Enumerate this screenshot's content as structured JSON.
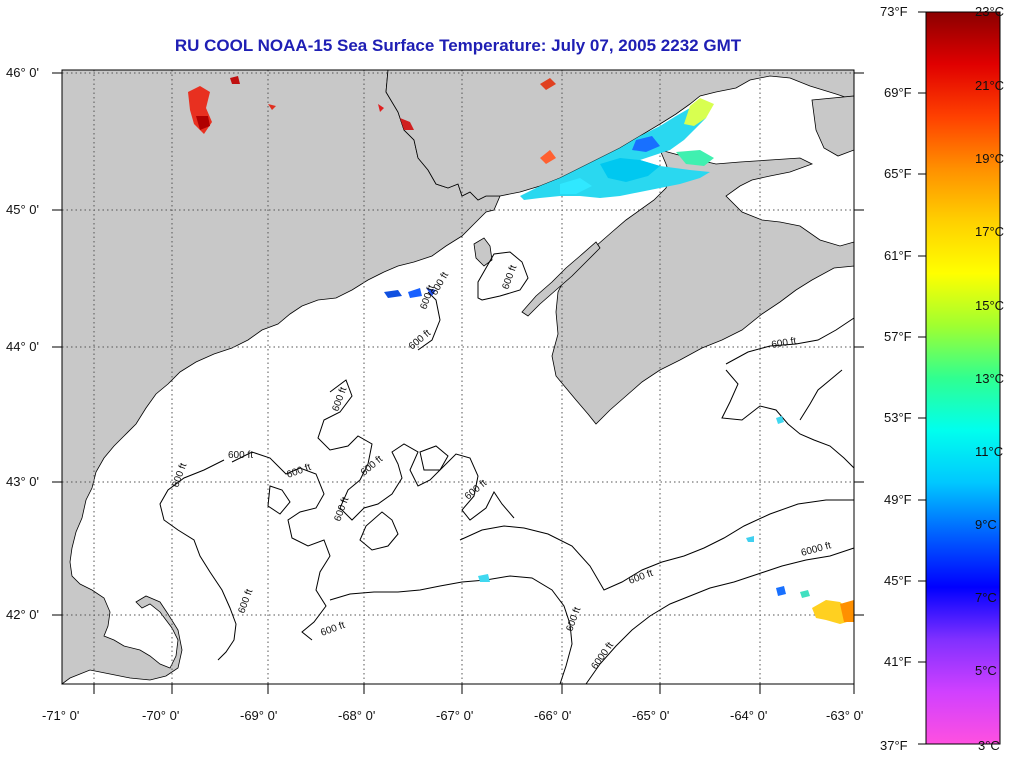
{
  "title": "RU COOL  NOAA-15  Sea Surface Temperature:  July 07, 2005 2232 GMT",
  "lat_labels": [
    "46° 0'",
    "45° 0'",
    "44° 0'",
    "43° 0'",
    "42° 0'"
  ],
  "lon_labels": [
    "-71° 0'",
    "-70° 0'",
    "-69° 0'",
    "-68° 0'",
    "-67° 0'",
    "-66° 0'",
    "-65° 0'",
    "-64° 0'",
    "-63° 0'"
  ],
  "contour_labels": [
    "600 ft",
    "600 ft",
    "600 ft",
    "600 ft",
    "600 ft",
    "600 ft",
    "600 ft",
    "600 ft",
    "600 ft",
    "600 ft",
    "600 ft",
    "600 ft",
    "600 ft",
    "600 ft",
    "600 ft",
    "600 ft",
    "6000 ft",
    "6000 ft"
  ],
  "colorbar": {
    "f_labels": [
      "73°F",
      "69°F",
      "65°F",
      "61°F",
      "57°F",
      "53°F",
      "49°F",
      "45°F",
      "41°F",
      "37°F"
    ],
    "c_labels": [
      "23°C",
      "21°C",
      "19°C",
      "17°C",
      "15°C",
      "13°C",
      "11°C",
      "9°C",
      "7°C",
      "5°C",
      "3°C"
    ],
    "stops": [
      "#8b0000",
      "#e00000",
      "#ff4000",
      "#ff9000",
      "#ffd000",
      "#ffff00",
      "#a0ff30",
      "#30ff90",
      "#00ffee",
      "#00c8ff",
      "#0060ff",
      "#0000ff",
      "#8030ff",
      "#d040ff",
      "#ff50e0"
    ]
  },
  "colors": {
    "land": "#c8c8c8",
    "water": "#ffffff",
    "grid": "#555555",
    "title": "#1f1fb4"
  }
}
